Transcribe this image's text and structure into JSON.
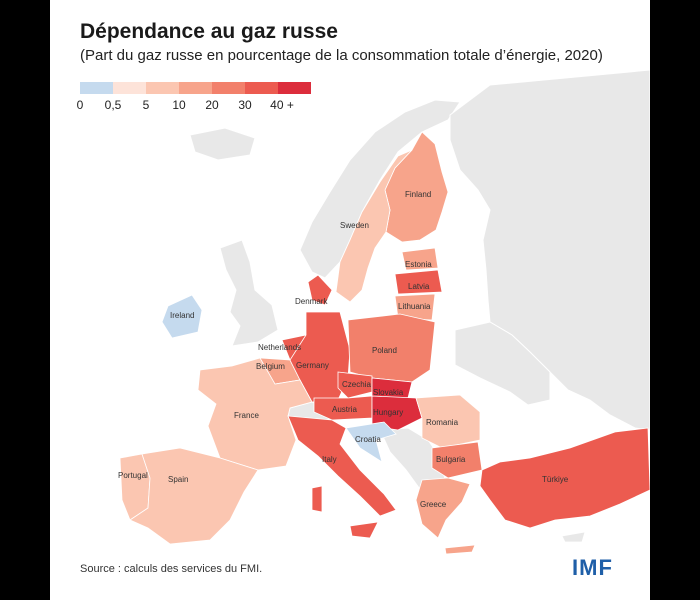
{
  "header": {
    "title": "Dépendance au gaz russe",
    "subtitle": "(Part du gaz russe en pourcentage de la consommation totale d’énergie, 2020)"
  },
  "legend": {
    "ticks": [
      "0",
      "0,5",
      "5",
      "10",
      "20",
      "30",
      "40 +"
    ],
    "colors": [
      "#c5daee",
      "#fde3d9",
      "#fbc6b1",
      "#f7a48b",
      "#f2806b",
      "#ec5b50",
      "#dc2d3c"
    ]
  },
  "colors": {
    "water": "#ffffff",
    "non_eu_land": "#e8e8e8",
    "no_data": "#e8e8e8"
  },
  "countries": {
    "finland": {
      "label": "Finland",
      "share_class": "10–20"
    },
    "sweden": {
      "label": "Sweden",
      "share_class": "0,5–5"
    },
    "estonia": {
      "label": "Estonia",
      "share_class": "5–10"
    },
    "latvia": {
      "label": "Latvia",
      "share_class": "20–30"
    },
    "lithuania": {
      "label": "Lithuania",
      "share_class": "10–20"
    },
    "denmark": {
      "label": "Denmark",
      "share_class": "20–30"
    },
    "ireland": {
      "label": "Ireland",
      "share_class": "0"
    },
    "netherlands": {
      "label": "Netherlands",
      "share_class": "20–30"
    },
    "belgium": {
      "label": "Belgium",
      "share_class": "5–10"
    },
    "germany": {
      "label": "Germany",
      "share_class": "20–30"
    },
    "poland": {
      "label": "Poland",
      "share_class": "10–20"
    },
    "czechia": {
      "label": "Czechia",
      "share_class": "20–30"
    },
    "slovakia": {
      "label": "Slovakia",
      "share_class": "30–40"
    },
    "austria": {
      "label": "Austria",
      "share_class": "20–30"
    },
    "hungary": {
      "label": "Hungary",
      "share_class": "40 +"
    },
    "france": {
      "label": "France",
      "share_class": "0,5–5"
    },
    "croatia": {
      "label": "Croatia",
      "share_class": "0"
    },
    "romania": {
      "label": "Romania",
      "share_class": "0,5–5"
    },
    "bulgaria": {
      "label": "Bulgaria",
      "share_class": "10–20"
    },
    "italy": {
      "label": "Italy",
      "share_class": "20–30"
    },
    "portugal": {
      "label": "Portugal",
      "share_class": "0,5–5"
    },
    "spain": {
      "label": "Spain",
      "share_class": "0,5–5"
    },
    "greece": {
      "label": "Greece",
      "share_class": "10–20"
    },
    "turkiye": {
      "label": "Türkiye",
      "share_class": "20–30"
    }
  },
  "footer": {
    "source": "Source : calculs des services du FMI.",
    "logo": "IMF"
  }
}
